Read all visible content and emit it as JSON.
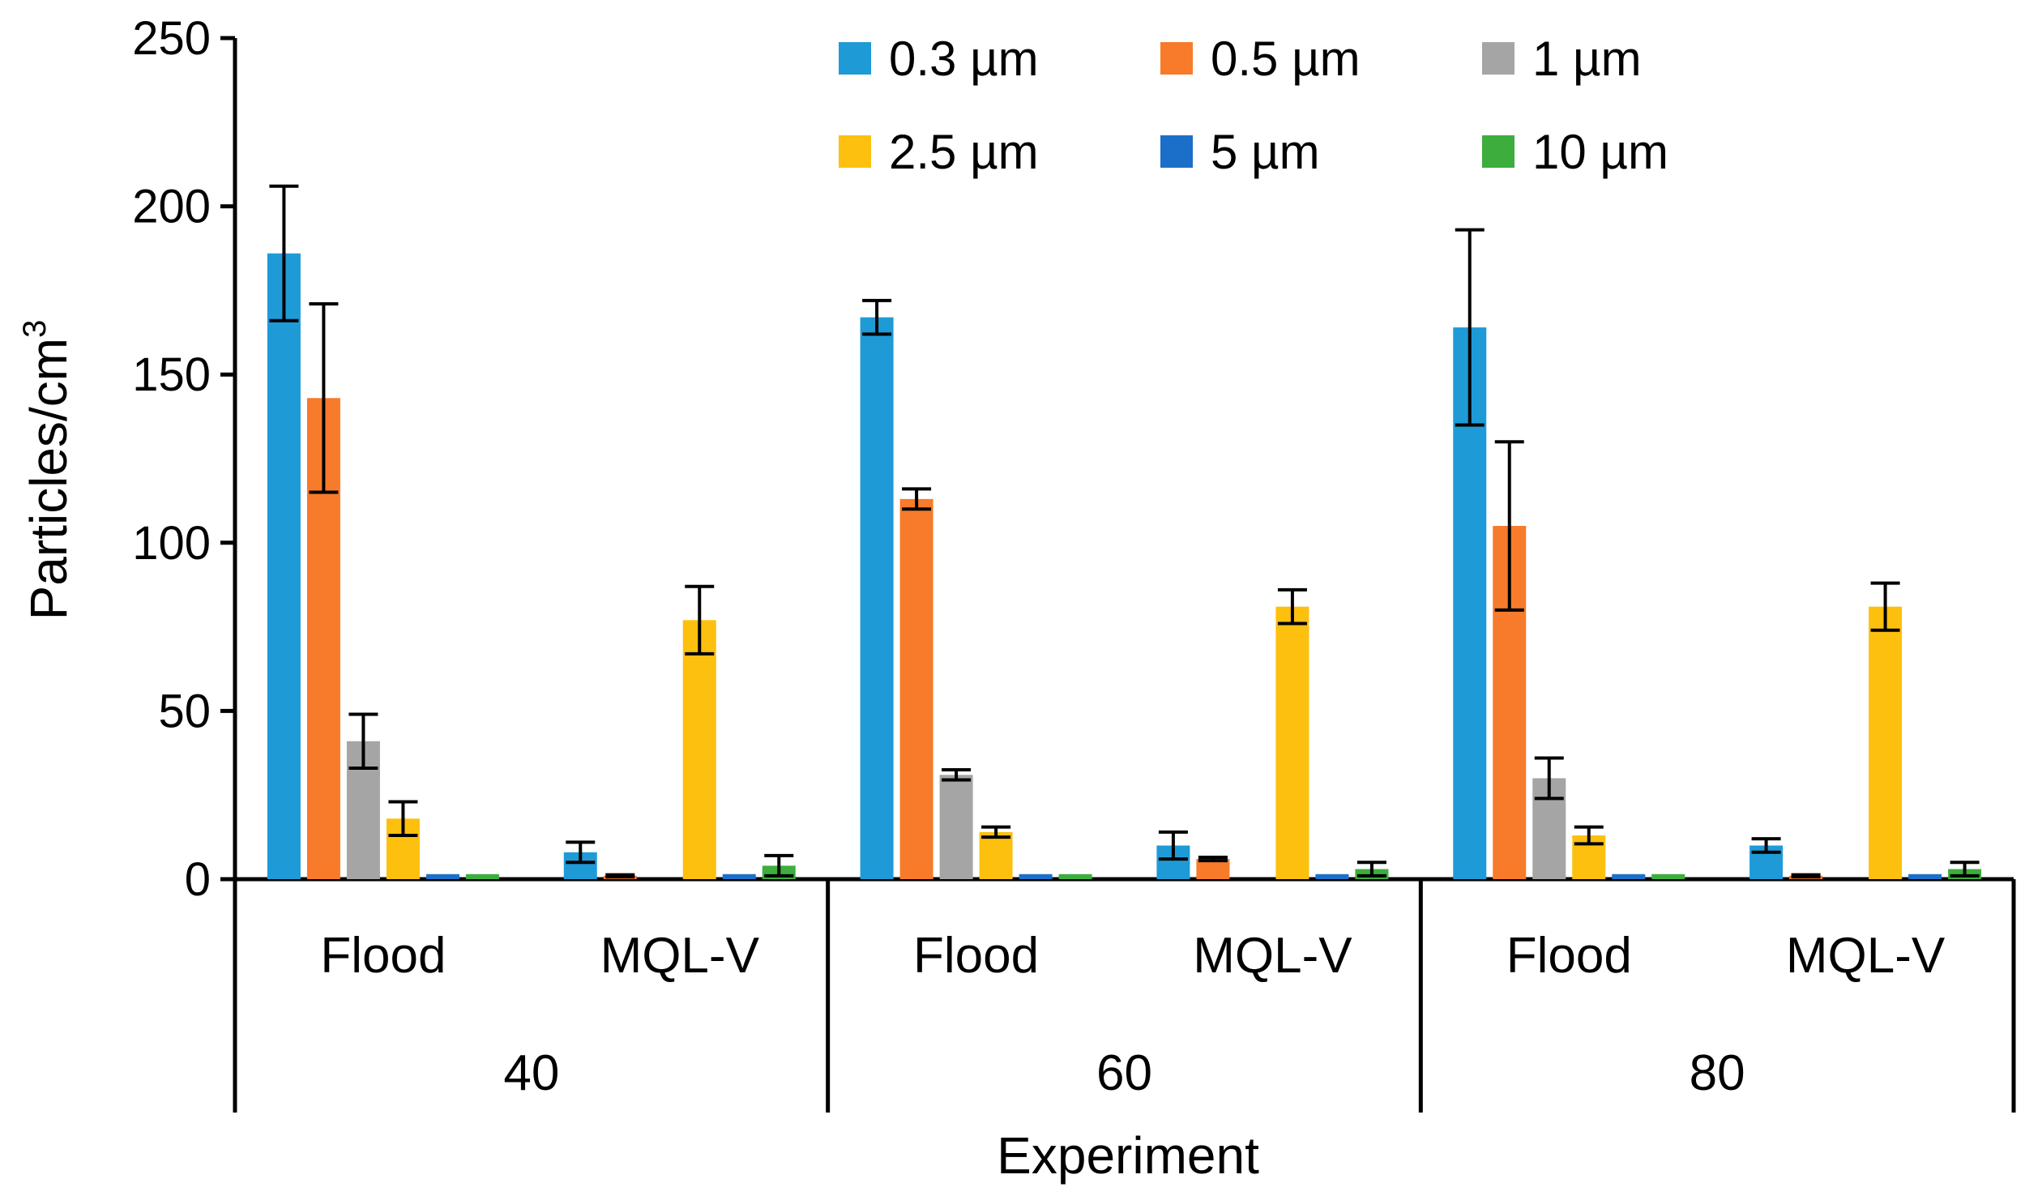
{
  "chart_data": {
    "type": "bar",
    "title": "",
    "xlabel": "Experiment",
    "ylabel": "Particles/cm",
    "ylabel_superscript": "3",
    "ylim": [
      0,
      250
    ],
    "yticks": [
      "0",
      "50",
      "100",
      "150",
      "200",
      "250"
    ],
    "groups": [
      {
        "label": "40",
        "categories": [
          "Flood",
          "MQL-V"
        ]
      },
      {
        "label": "60",
        "categories": [
          "Flood",
          "MQL-V"
        ]
      },
      {
        "label": "80",
        "categories": [
          "Flood",
          "MQL-V"
        ]
      }
    ],
    "categories": [
      "40 Flood",
      "40 MQL-V",
      "60 Flood",
      "60 MQL-V",
      "80 Flood",
      "80 MQL-V"
    ],
    "series": [
      {
        "name": "0.3 µm",
        "color": "#1e9bd7",
        "values": [
          186,
          8,
          167,
          10,
          164,
          10
        ],
        "errors": [
          20,
          3,
          5,
          4,
          29,
          2
        ]
      },
      {
        "name": "0.5 µm",
        "color": "#f77b2a",
        "values": [
          143,
          1,
          113,
          6,
          105,
          1
        ],
        "errors": [
          28,
          0.3,
          3,
          0.5,
          25,
          0.3
        ]
      },
      {
        "name": "1 µm",
        "color": "#a5a5a5",
        "values": [
          41,
          0,
          31,
          0,
          30,
          0
        ],
        "errors": [
          8,
          0,
          1.5,
          0,
          6,
          0
        ]
      },
      {
        "name": "2.5 µm",
        "color": "#fdc00e",
        "values": [
          18,
          77,
          14,
          81,
          13,
          81
        ],
        "errors": [
          5,
          10,
          1.5,
          5,
          2.5,
          7
        ]
      },
      {
        "name": "5 µm",
        "color": "#1c6fc9",
        "values": [
          1.5,
          1.5,
          1.5,
          1.5,
          1.5,
          1.5
        ],
        "errors": [
          0,
          0,
          0,
          0,
          0,
          0
        ]
      },
      {
        "name": "10 µm",
        "color": "#3dad3d",
        "values": [
          1.5,
          4,
          1.5,
          3,
          1.5,
          3
        ],
        "errors": [
          0,
          3,
          0,
          2,
          0,
          2
        ]
      }
    ],
    "legend": {
      "position": "top-right",
      "columns": 3
    },
    "grid": false
  }
}
